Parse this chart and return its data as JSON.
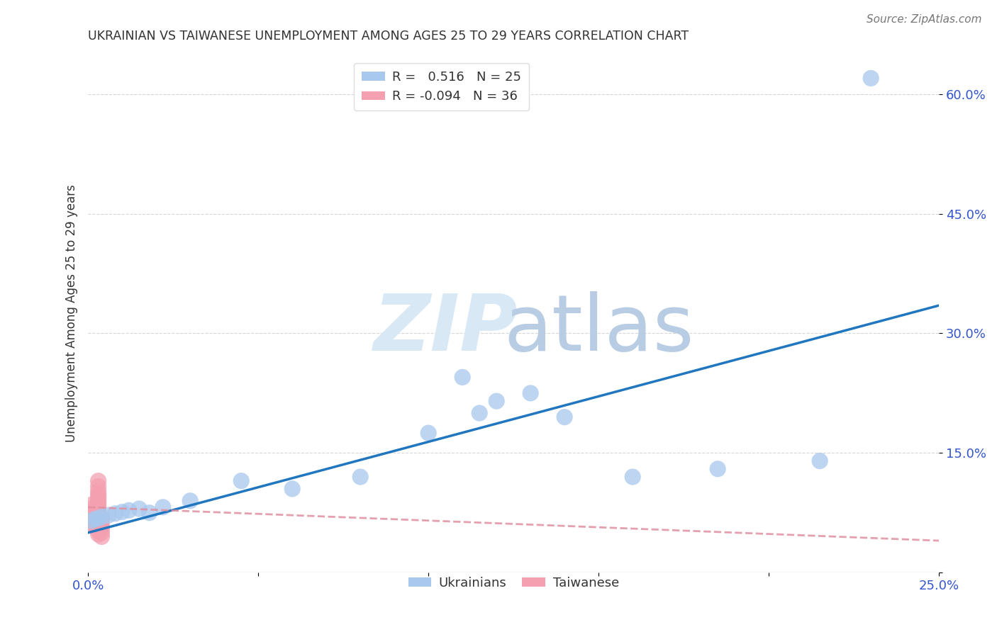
{
  "title": "UKRAINIAN VS TAIWANESE UNEMPLOYMENT AMONG AGES 25 TO 29 YEARS CORRELATION CHART",
  "source": "Source: ZipAtlas.com",
  "ylabel": "Unemployment Among Ages 25 to 29 years",
  "xlim": [
    0.0,
    0.25
  ],
  "ylim": [
    0.0,
    0.65
  ],
  "xticks": [
    0.0,
    0.05,
    0.1,
    0.15,
    0.2,
    0.25
  ],
  "yticks": [
    0.0,
    0.15,
    0.3,
    0.45,
    0.6
  ],
  "ytick_labels": [
    "",
    "15.0%",
    "30.0%",
    "45.0%",
    "60.0%"
  ],
  "xtick_labels": [
    "0.0%",
    "",
    "",
    "",
    "",
    "25.0%"
  ],
  "ukrainians_R": 0.516,
  "ukrainians_N": 25,
  "taiwanese_R": -0.094,
  "taiwanese_N": 36,
  "blue_color": "#A8C8EE",
  "blue_line_color": "#2176C0",
  "pink_color": "#F4A0B0",
  "pink_line_color": "#E090A0",
  "legend_blue_label": "R =   0.516   N = 25",
  "legend_pink_label": "R = -0.094   N = 36",
  "ukrainians_x": [
    0.001,
    0.002,
    0.003,
    0.004,
    0.006,
    0.008,
    0.01,
    0.012,
    0.015,
    0.018,
    0.022,
    0.03,
    0.045,
    0.06,
    0.08,
    0.1,
    0.11,
    0.115,
    0.12,
    0.13,
    0.14,
    0.16,
    0.185,
    0.215,
    0.23
  ],
  "ukrainians_y": [
    0.065,
    0.067,
    0.068,
    0.07,
    0.072,
    0.074,
    0.076,
    0.078,
    0.08,
    0.075,
    0.082,
    0.09,
    0.115,
    0.105,
    0.12,
    0.175,
    0.245,
    0.2,
    0.215,
    0.225,
    0.195,
    0.12,
    0.13,
    0.14,
    0.62
  ],
  "taiwanese_x": [
    0.001,
    0.001,
    0.001,
    0.001,
    0.001,
    0.001,
    0.002,
    0.002,
    0.002,
    0.002,
    0.002,
    0.003,
    0.003,
    0.003,
    0.003,
    0.003,
    0.003,
    0.003,
    0.003,
    0.003,
    0.003,
    0.003,
    0.003,
    0.003,
    0.003,
    0.003,
    0.003,
    0.003,
    0.003,
    0.003,
    0.004,
    0.004,
    0.004,
    0.004,
    0.004,
    0.004
  ],
  "taiwanese_y": [
    0.06,
    0.065,
    0.07,
    0.075,
    0.08,
    0.085,
    0.058,
    0.063,
    0.068,
    0.072,
    0.078,
    0.048,
    0.052,
    0.055,
    0.058,
    0.062,
    0.065,
    0.068,
    0.072,
    0.075,
    0.078,
    0.082,
    0.085,
    0.088,
    0.092,
    0.095,
    0.098,
    0.102,
    0.108,
    0.115,
    0.045,
    0.05,
    0.055,
    0.06,
    0.065,
    0.068
  ],
  "background_color": "#FFFFFF",
  "grid_color": "#CCCCCC"
}
